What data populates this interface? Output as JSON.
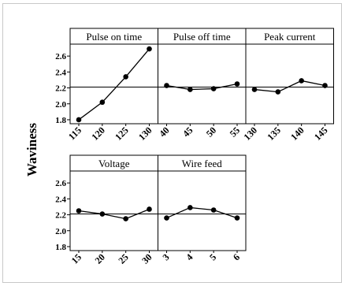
{
  "colors": {
    "line": "#000000",
    "reference_line": "#000000",
    "frame_border": "#c8c8c8",
    "background": "#ffffff"
  },
  "chart_data": {
    "type": "line",
    "ylabel": "Waviness",
    "ylim": [
      1.75,
      2.75
    ],
    "yticks": [
      "2.6",
      "2.4",
      "2.2",
      "2.0",
      "1.8"
    ],
    "reference_y": 2.21,
    "grid": false,
    "panels": [
      {
        "title": "Pulse on time",
        "x": [
          "115",
          "120",
          "125",
          "130"
        ],
        "values": [
          1.8,
          2.02,
          2.34,
          2.69
        ]
      },
      {
        "title": "Pulse off time",
        "x": [
          "40",
          "45",
          "50",
          "55"
        ],
        "values": [
          2.23,
          2.18,
          2.19,
          2.25
        ]
      },
      {
        "title": "Peak current",
        "x": [
          "130",
          "135",
          "140",
          "145"
        ],
        "values": [
          2.18,
          2.15,
          2.29,
          2.23
        ]
      },
      {
        "title": "Voltage",
        "x": [
          "15",
          "20",
          "25",
          "30"
        ],
        "values": [
          2.25,
          2.21,
          2.15,
          2.27
        ]
      },
      {
        "title": "Wire feed",
        "x": [
          "3",
          "4",
          "5",
          "6"
        ],
        "values": [
          2.16,
          2.29,
          2.26,
          2.16
        ]
      }
    ]
  }
}
